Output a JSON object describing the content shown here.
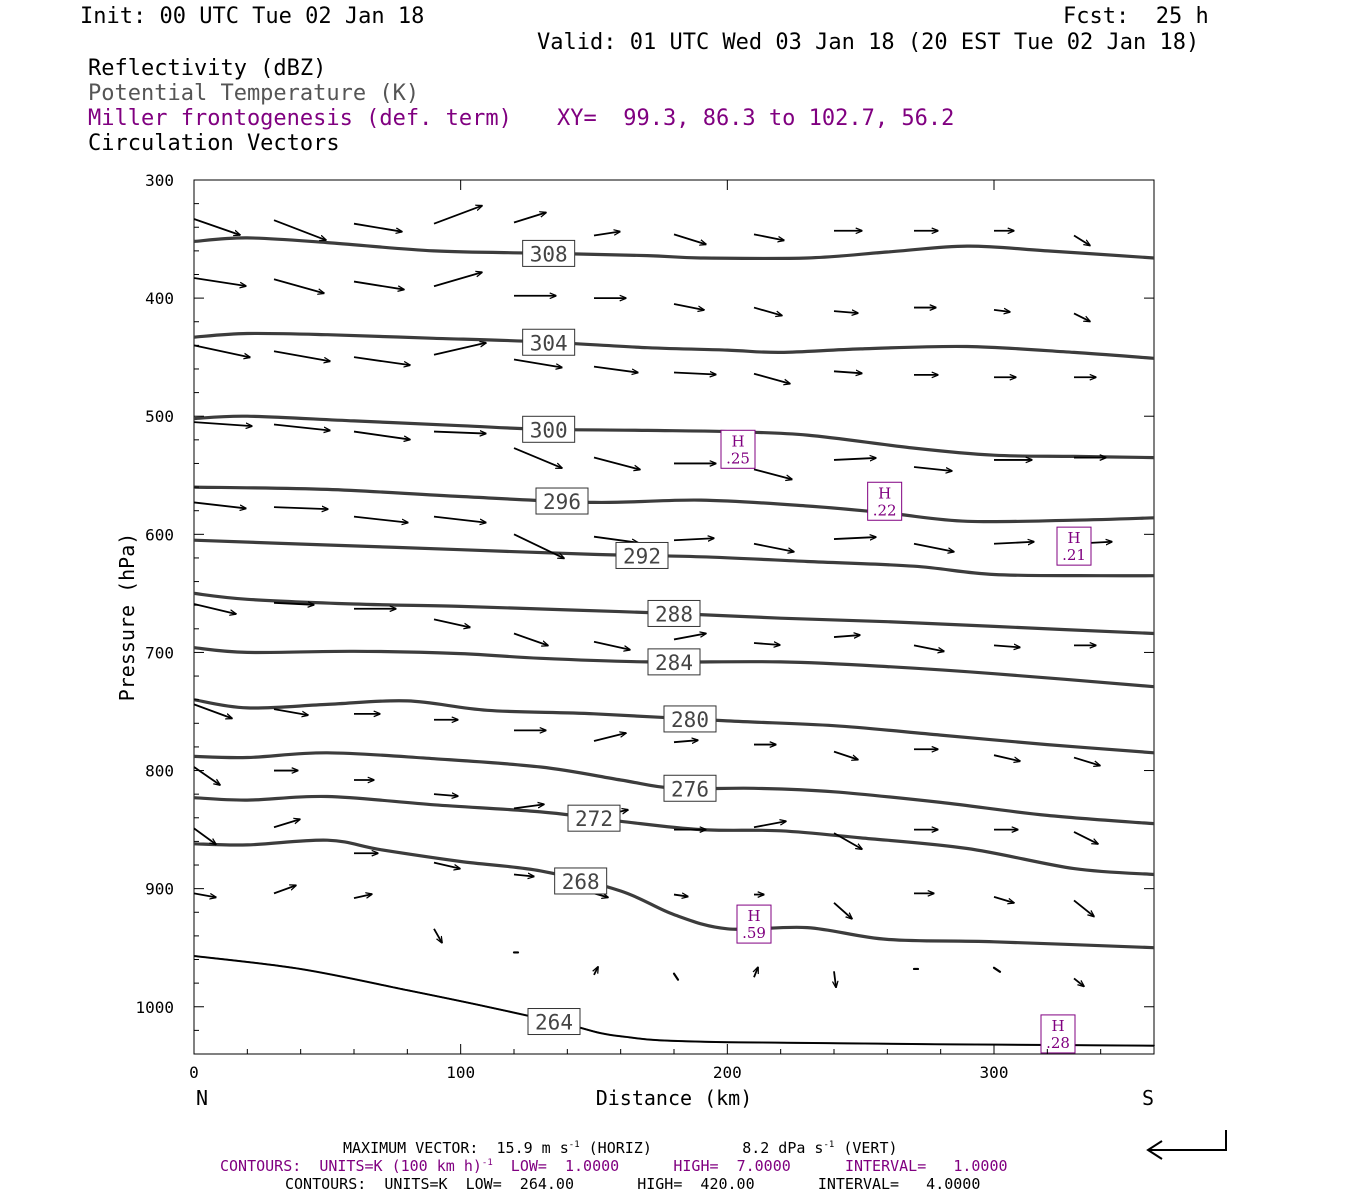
{
  "header": {
    "init": "Init: 00 UTC Tue 02 Jan 18",
    "fcst": "Fcst:  25 h",
    "valid": "Valid: 01 UTC Wed 03 Jan 18 (20 EST Tue 02 Jan 18)"
  },
  "legend": {
    "reflectivity": "Reflectivity (dBZ)",
    "potential_temperature": "Potential Temperature (K)",
    "miller": "Miller frontogenesis (def. term)",
    "xy": "XY=  99.3, 86.3 to 102.7, 56.2",
    "circulation": "Circulation Vectors"
  },
  "colors": {
    "theta": "#3c3c3c",
    "frontogenesis": "#800080",
    "vector": "#000000",
    "text": "#000000"
  },
  "chart_data": {
    "type": "cross-section",
    "xlabel": "Distance (km)",
    "ylabel": "Pressure (hPa)",
    "xlim": [
      0,
      360
    ],
    "ylim": [
      300,
      1040
    ],
    "y_inverted": true,
    "x_ticks": [
      "0",
      "100",
      "200",
      "300"
    ],
    "y_ticks": [
      "300",
      "400",
      "500",
      "600",
      "700",
      "800",
      "900",
      "1000"
    ],
    "endpoint_labels": {
      "left": "N",
      "right": "S"
    },
    "theta_contours": [
      {
        "value": 308,
        "label": "308",
        "label_x": 133,
        "points": [
          [
            0,
            352
          ],
          [
            20,
            349
          ],
          [
            50,
            353
          ],
          [
            90,
            360
          ],
          [
            130,
            362
          ],
          [
            170,
            364
          ],
          [
            190,
            366
          ],
          [
            230,
            366
          ],
          [
            260,
            361
          ],
          [
            290,
            356
          ],
          [
            320,
            360
          ],
          [
            360,
            366
          ]
        ]
      },
      {
        "value": 304,
        "label": "304",
        "label_x": 133,
        "points": [
          [
            0,
            433
          ],
          [
            20,
            430
          ],
          [
            50,
            431
          ],
          [
            90,
            434
          ],
          [
            130,
            437
          ],
          [
            170,
            442
          ],
          [
            200,
            444
          ],
          [
            220,
            446
          ],
          [
            250,
            443
          ],
          [
            290,
            441
          ],
          [
            330,
            446
          ],
          [
            360,
            451
          ]
        ]
      },
      {
        "value": 300,
        "label": "300",
        "label_x": 133,
        "points": [
          [
            0,
            502
          ],
          [
            20,
            500
          ],
          [
            60,
            504
          ],
          [
            100,
            508
          ],
          [
            130,
            511
          ],
          [
            170,
            512
          ],
          [
            200,
            513
          ],
          [
            230,
            516
          ],
          [
            270,
            527
          ],
          [
            300,
            533
          ],
          [
            330,
            534
          ],
          [
            360,
            535
          ]
        ]
      },
      {
        "value": 296,
        "label": "296",
        "label_x": 138,
        "points": [
          [
            0,
            560
          ],
          [
            50,
            562
          ],
          [
            100,
            568
          ],
          [
            150,
            573
          ],
          [
            190,
            571
          ],
          [
            230,
            576
          ],
          [
            260,
            582
          ],
          [
            290,
            589
          ],
          [
            330,
            588
          ],
          [
            360,
            586
          ]
        ]
      },
      {
        "value": 292,
        "label": "292",
        "label_x": 168,
        "points": [
          [
            0,
            605
          ],
          [
            50,
            609
          ],
          [
            100,
            613
          ],
          [
            150,
            617
          ],
          [
            190,
            619
          ],
          [
            230,
            623
          ],
          [
            270,
            627
          ],
          [
            300,
            634
          ],
          [
            340,
            635
          ],
          [
            360,
            635
          ]
        ]
      },
      {
        "value": 288,
        "label": "288",
        "label_x": 180,
        "points": [
          [
            0,
            650
          ],
          [
            20,
            655
          ],
          [
            60,
            659
          ],
          [
            100,
            661
          ],
          [
            140,
            664
          ],
          [
            180,
            667
          ],
          [
            220,
            671
          ],
          [
            260,
            674
          ],
          [
            300,
            678
          ],
          [
            360,
            684
          ]
        ]
      },
      {
        "value": 284,
        "label": "284",
        "label_x": 180,
        "points": [
          [
            0,
            696
          ],
          [
            20,
            700
          ],
          [
            60,
            699
          ],
          [
            100,
            701
          ],
          [
            130,
            705
          ],
          [
            170,
            708
          ],
          [
            220,
            708
          ],
          [
            260,
            712
          ],
          [
            300,
            718
          ],
          [
            360,
            729
          ]
        ]
      },
      {
        "value": 280,
        "label": "280",
        "label_x": 186,
        "points": [
          [
            0,
            740
          ],
          [
            20,
            747
          ],
          [
            50,
            744
          ],
          [
            80,
            741
          ],
          [
            110,
            749
          ],
          [
            150,
            752
          ],
          [
            200,
            758
          ],
          [
            240,
            762
          ],
          [
            280,
            770
          ],
          [
            320,
            778
          ],
          [
            360,
            785
          ]
        ]
      },
      {
        "value": 276,
        "label": "276",
        "label_x": 186,
        "points": [
          [
            0,
            788
          ],
          [
            20,
            789
          ],
          [
            50,
            785
          ],
          [
            90,
            790
          ],
          [
            130,
            797
          ],
          [
            160,
            808
          ],
          [
            180,
            815
          ],
          [
            210,
            815
          ],
          [
            240,
            818
          ],
          [
            280,
            827
          ],
          [
            320,
            838
          ],
          [
            360,
            845
          ]
        ]
      },
      {
        "value": 272,
        "label": "272",
        "label_x": 150,
        "points": [
          [
            0,
            823
          ],
          [
            20,
            825
          ],
          [
            50,
            822
          ],
          [
            90,
            829
          ],
          [
            130,
            835
          ],
          [
            160,
            843
          ],
          [
            190,
            850
          ],
          [
            220,
            851
          ],
          [
            250,
            857
          ],
          [
            290,
            866
          ],
          [
            330,
            883
          ],
          [
            360,
            888
          ]
        ]
      },
      {
        "value": 268,
        "label": "268",
        "label_x": 145,
        "points": [
          [
            0,
            862
          ],
          [
            20,
            863
          ],
          [
            50,
            859
          ],
          [
            70,
            867
          ],
          [
            100,
            877
          ],
          [
            130,
            885
          ],
          [
            160,
            902
          ],
          [
            180,
            922
          ],
          [
            200,
            934
          ],
          [
            230,
            933
          ],
          [
            260,
            943
          ],
          [
            300,
            945
          ],
          [
            360,
            950
          ]
        ]
      },
      {
        "value": 264,
        "label": "264",
        "label_x": 135,
        "points": [
          [
            0,
            957
          ],
          [
            40,
            968
          ],
          [
            80,
            986
          ],
          [
            110,
            1000
          ],
          [
            140,
            1015
          ],
          [
            160,
            1025
          ],
          [
            200,
            1030
          ],
          [
            360,
            1033
          ]
        ]
      }
    ],
    "surface": {
      "points": [
        [
          0,
          957
        ],
        [
          40,
          968
        ],
        [
          80,
          986
        ],
        [
          110,
          1000
        ],
        [
          140,
          1015
        ],
        [
          160,
          1025
        ],
        [
          200,
          1030
        ],
        [
          360,
          1033
        ]
      ]
    },
    "frontogenesis_maxima": [
      {
        "label": "H",
        "value": ".25",
        "x": 204,
        "p": 528
      },
      {
        "label": "H",
        "value": ".22",
        "x": 259,
        "p": 572
      },
      {
        "label": "H",
        "value": ".21",
        "x": 330,
        "p": 610
      },
      {
        "label": "H",
        "value": ".59",
        "x": 210,
        "p": 930
      },
      {
        "label": "H",
        "value": ".28",
        "x": 324,
        "p": 1023
      }
    ],
    "vector_scale": {
      "max_horiz_ms": 15.9,
      "max_vert_dPa_s": 8.2
    },
    "circulation_vectors": [
      [
        0,
        333,
        23,
        8
      ],
      [
        30,
        334,
        26,
        10
      ],
      [
        60,
        337,
        24,
        4
      ],
      [
        90,
        337,
        24,
        -9
      ],
      [
        120,
        336,
        16,
        -5
      ],
      [
        150,
        347,
        13,
        -2
      ],
      [
        180,
        346,
        16,
        5
      ],
      [
        210,
        346,
        15,
        3
      ],
      [
        240,
        343,
        14,
        0
      ],
      [
        270,
        343,
        12,
        0
      ],
      [
        300,
        343,
        10,
        0
      ],
      [
        330,
        347,
        8,
        5
      ],
      [
        0,
        383,
        26,
        4
      ],
      [
        30,
        384,
        25,
        7
      ],
      [
        60,
        386,
        25,
        4
      ],
      [
        90,
        390,
        24,
        -7
      ],
      [
        120,
        398,
        21,
        0
      ],
      [
        150,
        400,
        16,
        0
      ],
      [
        180,
        405,
        15,
        3
      ],
      [
        210,
        408,
        14,
        4
      ],
      [
        240,
        411,
        12,
        1
      ],
      [
        270,
        408,
        11,
        0
      ],
      [
        300,
        410,
        8,
        1
      ],
      [
        330,
        413,
        8,
        4
      ],
      [
        0,
        440,
        28,
        6
      ],
      [
        30,
        445,
        28,
        5
      ],
      [
        60,
        450,
        28,
        4
      ],
      [
        90,
        448,
        26,
        -6
      ],
      [
        120,
        452,
        24,
        4
      ],
      [
        150,
        458,
        22,
        3
      ],
      [
        180,
        463,
        21,
        1
      ],
      [
        210,
        464,
        18,
        5
      ],
      [
        240,
        462,
        14,
        1
      ],
      [
        270,
        465,
        12,
        0
      ],
      [
        300,
        467,
        11,
        0
      ],
      [
        330,
        467,
        11,
        0
      ],
      [
        0,
        505,
        29,
        2
      ],
      [
        30,
        507,
        28,
        3
      ],
      [
        60,
        513,
        28,
        4
      ],
      [
        90,
        513,
        26,
        1
      ],
      [
        120,
        527,
        24,
        10
      ],
      [
        150,
        535,
        23,
        6
      ],
      [
        180,
        540,
        21,
        0
      ],
      [
        210,
        545,
        19,
        5
      ],
      [
        240,
        537,
        21,
        -1
      ],
      [
        270,
        543,
        19,
        2
      ],
      [
        300,
        537,
        19,
        0
      ],
      [
        330,
        535,
        16,
        0
      ],
      [
        0,
        573,
        26,
        3
      ],
      [
        30,
        577,
        27,
        1
      ],
      [
        60,
        585,
        27,
        3
      ],
      [
        90,
        585,
        26,
        3
      ],
      [
        120,
        600,
        25,
        12
      ],
      [
        150,
        602,
        22,
        3
      ],
      [
        180,
        605,
        20,
        -1
      ],
      [
        210,
        608,
        20,
        4
      ],
      [
        240,
        604,
        21,
        -1
      ],
      [
        270,
        608,
        20,
        4
      ],
      [
        300,
        608,
        20,
        -1
      ],
      [
        330,
        608,
        19,
        -1
      ],
      [
        0,
        659,
        21,
        5
      ],
      [
        30,
        658,
        20,
        1
      ],
      [
        60,
        663,
        21,
        0
      ],
      [
        90,
        672,
        18,
        4
      ],
      [
        120,
        684,
        17,
        6
      ],
      [
        150,
        691,
        18,
        4
      ],
      [
        180,
        689,
        16,
        -3
      ],
      [
        210,
        692,
        13,
        1
      ],
      [
        240,
        687,
        13,
        -1
      ],
      [
        270,
        694,
        15,
        3
      ],
      [
        300,
        694,
        13,
        1
      ],
      [
        330,
        694,
        11,
        0
      ],
      [
        0,
        744,
        19,
        7
      ],
      [
        30,
        748,
        17,
        3
      ],
      [
        60,
        752,
        13,
        0
      ],
      [
        90,
        757,
        12,
        0
      ],
      [
        120,
        766,
        16,
        0
      ],
      [
        150,
        775,
        16,
        -4
      ],
      [
        180,
        776,
        12,
        -1
      ],
      [
        210,
        778,
        11,
        0
      ],
      [
        240,
        784,
        12,
        4
      ],
      [
        270,
        782,
        12,
        0
      ],
      [
        300,
        787,
        13,
        3
      ],
      [
        330,
        789,
        13,
        4
      ],
      [
        0,
        797,
        13,
        9
      ],
      [
        30,
        800,
        12,
        0
      ],
      [
        60,
        808,
        10,
        0
      ],
      [
        90,
        820,
        12,
        1
      ],
      [
        120,
        832,
        15,
        -2
      ],
      [
        150,
        840,
        17,
        -4
      ],
      [
        180,
        850,
        16,
        0
      ],
      [
        210,
        848,
        16,
        -3
      ],
      [
        240,
        853,
        14,
        8
      ],
      [
        270,
        850,
        12,
        0
      ],
      [
        300,
        850,
        12,
        0
      ],
      [
        330,
        852,
        12,
        6
      ],
      [
        0,
        849,
        11,
        8
      ],
      [
        30,
        848,
        13,
        -4
      ],
      [
        60,
        870,
        12,
        0
      ],
      [
        90,
        878,
        13,
        3
      ],
      [
        120,
        888,
        10,
        1
      ],
      [
        150,
        904,
        7,
        2
      ],
      [
        180,
        905,
        7,
        1
      ],
      [
        210,
        905,
        5,
        0
      ],
      [
        240,
        912,
        9,
        8
      ],
      [
        270,
        904,
        10,
        0
      ],
      [
        300,
        907,
        10,
        3
      ],
      [
        330,
        910,
        10,
        8
      ],
      [
        0,
        904,
        11,
        2
      ],
      [
        30,
        904,
        11,
        -4
      ],
      [
        60,
        908,
        9,
        -2
      ],
      [
        90,
        934,
        4,
        7
      ],
      [
        120,
        954,
        2,
        0
      ],
      [
        150,
        973,
        2,
        -4
      ],
      [
        180,
        972,
        2,
        3
      ],
      [
        210,
        975,
        2,
        -5
      ],
      [
        240,
        970,
        1,
        8
      ],
      [
        270,
        968,
        2,
        0
      ],
      [
        300,
        967,
        3,
        2
      ],
      [
        330,
        976,
        5,
        4
      ]
    ],
    "max_vector_legend": "MAXIMUM VECTOR:  15.9 m s",
    "horiz_label": "(HORIZ)",
    "vert_legend_value": "8.2 dPa s",
    "vert_label": "(VERT)",
    "sup_minus1": "-1",
    "contour_line_1a": "CONTOURS:  UNITS=K (100 km h)",
    "contour_line_1b": "  LOW=  1.0000      HIGH=  7.0000      INTERVAL=   1.0000",
    "contour_line_2": "CONTOURS:  UNITS=K  LOW=  264.00       HIGH=  420.00       INTERVAL=   4.0000"
  }
}
